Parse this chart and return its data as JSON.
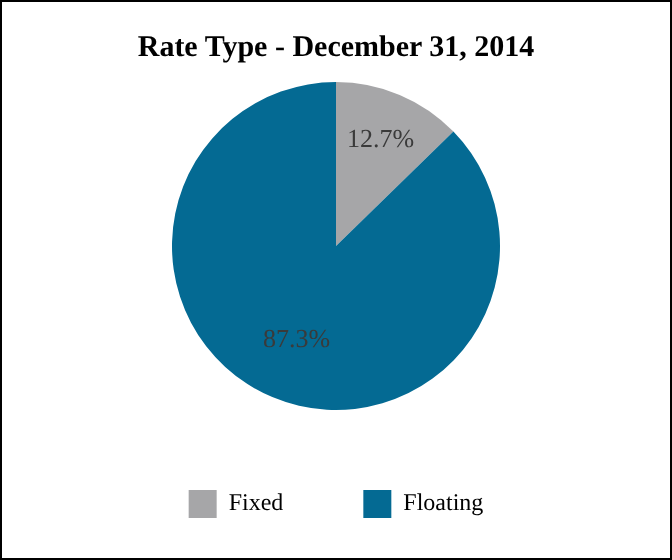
{
  "chart_data": {
    "type": "pie",
    "title": "Rate Type - December 31, 2014",
    "categories": [
      "Fixed",
      "Floating"
    ],
    "values": [
      12.7,
      87.3
    ],
    "colors": [
      "#a6a6a8",
      "#046a93"
    ],
    "value_labels": [
      "12.7%",
      "87.3%"
    ],
    "legend": "bottom"
  }
}
